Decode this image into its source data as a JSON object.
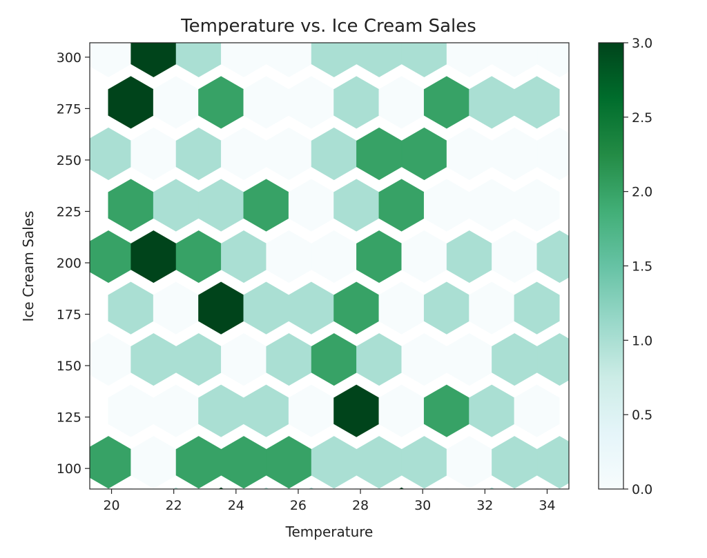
{
  "chart_data": {
    "type": "heatmap",
    "subtype": "hexbin",
    "title": "Temperature vs. Ice Cream Sales",
    "xlabel": "Temperature",
    "ylabel": "Ice Cream Sales",
    "xlim": [
      19.3,
      34.7
    ],
    "ylim": [
      90,
      307
    ],
    "xticks": [
      20,
      22,
      24,
      26,
      28,
      30,
      32,
      34
    ],
    "yticks": [
      100,
      125,
      150,
      175,
      200,
      225,
      250,
      275,
      300
    ],
    "colorbar": {
      "min": 0.0,
      "max": 3.0,
      "ticks": [
        "0.0",
        "0.5",
        "1.0",
        "1.5",
        "2.0",
        "2.5",
        "3.0"
      ]
    },
    "colormap": [
      "#f7fcfd",
      "#e5f5f9",
      "#ccece6",
      "#99d8c9",
      "#66c2a4",
      "#41ae76",
      "#238b45",
      "#006d2c",
      "#00441b"
    ],
    "cells": [
      {
        "x": 19.9,
        "y": 303,
        "count": 0
      },
      {
        "x": 21.35,
        "y": 303,
        "count": 3
      },
      {
        "x": 22.8,
        "y": 303,
        "count": 1
      },
      {
        "x": 24.25,
        "y": 303,
        "count": 0
      },
      {
        "x": 25.7,
        "y": 303,
        "count": 0
      },
      {
        "x": 27.15,
        "y": 303,
        "count": 1
      },
      {
        "x": 28.6,
        "y": 303,
        "count": 1
      },
      {
        "x": 30.05,
        "y": 303,
        "count": 1
      },
      {
        "x": 31.5,
        "y": 303,
        "count": 0
      },
      {
        "x": 32.95,
        "y": 303,
        "count": 0
      },
      {
        "x": 34.4,
        "y": 303,
        "count": 0
      },
      {
        "x": 20.62,
        "y": 278,
        "count": 3
      },
      {
        "x": 22.07,
        "y": 278,
        "count": 0
      },
      {
        "x": 23.52,
        "y": 278,
        "count": 2
      },
      {
        "x": 24.97,
        "y": 278,
        "count": 0
      },
      {
        "x": 26.42,
        "y": 278,
        "count": 0
      },
      {
        "x": 27.87,
        "y": 278,
        "count": 1
      },
      {
        "x": 29.32,
        "y": 278,
        "count": 0
      },
      {
        "x": 30.77,
        "y": 278,
        "count": 2
      },
      {
        "x": 32.22,
        "y": 278,
        "count": 1
      },
      {
        "x": 33.67,
        "y": 278,
        "count": 1
      },
      {
        "x": 19.9,
        "y": 253,
        "count": 1
      },
      {
        "x": 21.35,
        "y": 253,
        "count": 0
      },
      {
        "x": 22.8,
        "y": 253,
        "count": 1
      },
      {
        "x": 24.25,
        "y": 253,
        "count": 0
      },
      {
        "x": 25.7,
        "y": 253,
        "count": 0
      },
      {
        "x": 27.15,
        "y": 253,
        "count": 1
      },
      {
        "x": 28.6,
        "y": 253,
        "count": 2
      },
      {
        "x": 30.05,
        "y": 253,
        "count": 2
      },
      {
        "x": 31.5,
        "y": 253,
        "count": 0
      },
      {
        "x": 32.95,
        "y": 253,
        "count": 0
      },
      {
        "x": 34.4,
        "y": 253,
        "count": 0
      },
      {
        "x": 20.62,
        "y": 228,
        "count": 2
      },
      {
        "x": 22.07,
        "y": 228,
        "count": 1
      },
      {
        "x": 23.52,
        "y": 228,
        "count": 1
      },
      {
        "x": 24.97,
        "y": 228,
        "count": 2
      },
      {
        "x": 26.42,
        "y": 228,
        "count": 0
      },
      {
        "x": 27.87,
        "y": 228,
        "count": 1
      },
      {
        "x": 29.32,
        "y": 228,
        "count": 2
      },
      {
        "x": 30.77,
        "y": 228,
        "count": 0
      },
      {
        "x": 32.22,
        "y": 228,
        "count": 0
      },
      {
        "x": 33.67,
        "y": 228,
        "count": 0
      },
      {
        "x": 19.9,
        "y": 203,
        "count": 2
      },
      {
        "x": 21.35,
        "y": 203,
        "count": 3
      },
      {
        "x": 22.8,
        "y": 203,
        "count": 2
      },
      {
        "x": 24.25,
        "y": 203,
        "count": 1
      },
      {
        "x": 25.7,
        "y": 203,
        "count": 0
      },
      {
        "x": 27.15,
        "y": 203,
        "count": 0
      },
      {
        "x": 28.6,
        "y": 203,
        "count": 2
      },
      {
        "x": 30.05,
        "y": 203,
        "count": 0
      },
      {
        "x": 31.5,
        "y": 203,
        "count": 1
      },
      {
        "x": 32.95,
        "y": 203,
        "count": 0
      },
      {
        "x": 34.4,
        "y": 203,
        "count": 1
      },
      {
        "x": 20.62,
        "y": 178,
        "count": 1
      },
      {
        "x": 22.07,
        "y": 178,
        "count": 0
      },
      {
        "x": 23.52,
        "y": 178,
        "count": 3
      },
      {
        "x": 24.97,
        "y": 178,
        "count": 1
      },
      {
        "x": 26.42,
        "y": 178,
        "count": 1
      },
      {
        "x": 27.87,
        "y": 178,
        "count": 2
      },
      {
        "x": 29.32,
        "y": 178,
        "count": 0
      },
      {
        "x": 30.77,
        "y": 178,
        "count": 1
      },
      {
        "x": 32.22,
        "y": 178,
        "count": 0
      },
      {
        "x": 33.67,
        "y": 178,
        "count": 1
      },
      {
        "x": 19.9,
        "y": 153,
        "count": 0
      },
      {
        "x": 21.35,
        "y": 153,
        "count": 1
      },
      {
        "x": 22.8,
        "y": 153,
        "count": 1
      },
      {
        "x": 24.25,
        "y": 153,
        "count": 0
      },
      {
        "x": 25.7,
        "y": 153,
        "count": 1
      },
      {
        "x": 27.15,
        "y": 153,
        "count": 2
      },
      {
        "x": 28.6,
        "y": 153,
        "count": 1
      },
      {
        "x": 30.05,
        "y": 153,
        "count": 0
      },
      {
        "x": 31.5,
        "y": 153,
        "count": 0
      },
      {
        "x": 32.95,
        "y": 153,
        "count": 1
      },
      {
        "x": 34.4,
        "y": 153,
        "count": 1
      },
      {
        "x": 20.62,
        "y": 128,
        "count": 0
      },
      {
        "x": 22.07,
        "y": 128,
        "count": 0
      },
      {
        "x": 23.52,
        "y": 128,
        "count": 1
      },
      {
        "x": 24.97,
        "y": 128,
        "count": 1
      },
      {
        "x": 26.42,
        "y": 128,
        "count": 0
      },
      {
        "x": 27.87,
        "y": 128,
        "count": 3
      },
      {
        "x": 29.32,
        "y": 128,
        "count": 0
      },
      {
        "x": 30.77,
        "y": 128,
        "count": 2
      },
      {
        "x": 32.22,
        "y": 128,
        "count": 1
      },
      {
        "x": 33.67,
        "y": 128,
        "count": 0
      },
      {
        "x": 19.9,
        "y": 103,
        "count": 2
      },
      {
        "x": 21.35,
        "y": 103,
        "count": 0
      },
      {
        "x": 22.8,
        "y": 103,
        "count": 2
      },
      {
        "x": 24.25,
        "y": 103,
        "count": 2
      },
      {
        "x": 25.7,
        "y": 103,
        "count": 2
      },
      {
        "x": 27.15,
        "y": 103,
        "count": 1
      },
      {
        "x": 28.6,
        "y": 103,
        "count": 1
      },
      {
        "x": 30.05,
        "y": 103,
        "count": 1
      },
      {
        "x": 31.5,
        "y": 103,
        "count": 0
      },
      {
        "x": 32.95,
        "y": 103,
        "count": 1
      },
      {
        "x": 34.4,
        "y": 103,
        "count": 1
      },
      {
        "x": 20.62,
        "y": 78,
        "count": 0
      },
      {
        "x": 22.07,
        "y": 78,
        "count": 1
      },
      {
        "x": 23.52,
        "y": 78,
        "count": 3
      },
      {
        "x": 24.97,
        "y": 78,
        "count": 1
      },
      {
        "x": 26.42,
        "y": 78,
        "count": 1
      },
      {
        "x": 27.87,
        "y": 78,
        "count": 0
      },
      {
        "x": 29.32,
        "y": 78,
        "count": 3
      },
      {
        "x": 30.77,
        "y": 78,
        "count": 0
      },
      {
        "x": 32.22,
        "y": 78,
        "count": 1
      },
      {
        "x": 33.67,
        "y": 78,
        "count": 0
      }
    ]
  }
}
